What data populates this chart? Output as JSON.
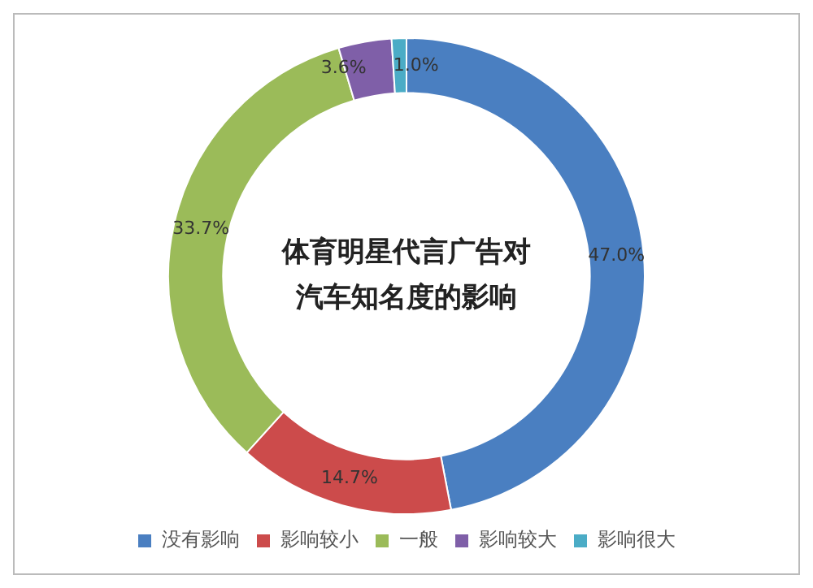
{
  "chart_data": {
    "type": "donut",
    "title": "体育明星代言广告对汽车知名度的影响",
    "categories": [
      "没有影响",
      "影响较小",
      "一般",
      "影响较大",
      "影响很大"
    ],
    "values": [
      47.0,
      14.7,
      33.7,
      3.6,
      1.0
    ],
    "value_labels": [
      "47.0%",
      "14.7%",
      "33.7%",
      "3.6%",
      "1.0%"
    ],
    "colors": [
      "#4a7fc1",
      "#cc4b4b",
      "#9bbb59",
      "#7f5fa8",
      "#4bacc6"
    ],
    "legend": "bottom"
  }
}
